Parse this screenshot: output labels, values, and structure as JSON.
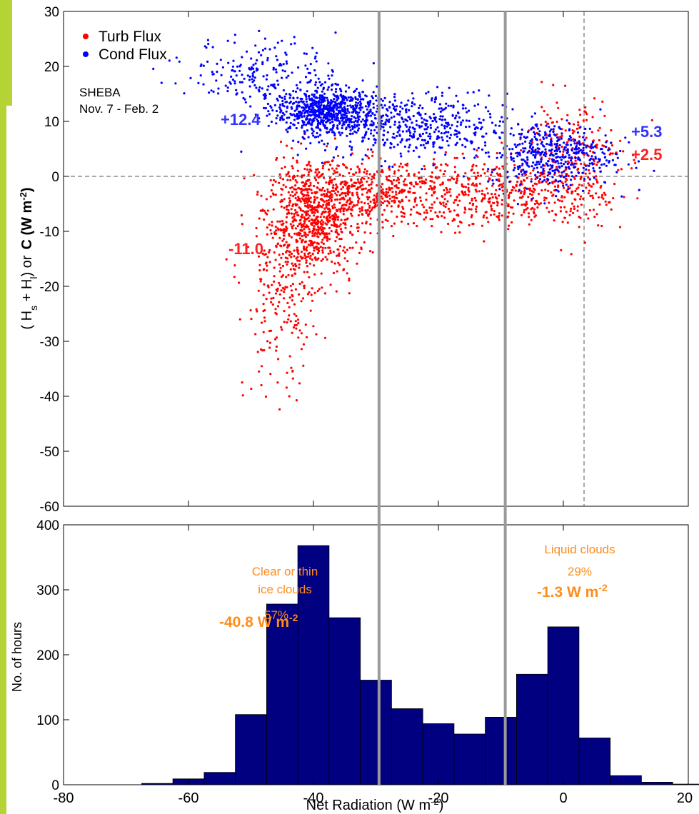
{
  "colors": {
    "frame": "#b5d334",
    "turb": "#ff0000",
    "cond": "#0000ff",
    "hist": "#000080",
    "annot_orange": "#ff8c1a",
    "divider": "#9a9a9a"
  },
  "chart_data": [
    {
      "type": "scatter",
      "ylabel_prefix": "( H",
      "ylabel_s": "s",
      "ylabel_plus": " + H",
      "ylabel_l": "l",
      "ylabel_mid": ") or",
      "ylabel_bold": "C (W m",
      "ylabel_exp": "-2",
      "ylabel_close": ")",
      "xlim": [
        -80,
        20
      ],
      "ylim": [
        -60,
        30
      ],
      "yticks": [
        "-60",
        "-50",
        "-40",
        "-30",
        "-20",
        "-10",
        "0",
        "10",
        "20",
        "30"
      ],
      "grid": false,
      "legend": [
        {
          "name": "Turb Flux",
          "color": "#ff0000"
        },
        {
          "name": "Cond Flux",
          "color": "#0000ff"
        }
      ],
      "annotation_site": "SHEBA",
      "annotation_dates": "Nov. 7 - Feb. 2",
      "labels": {
        "cond_clear": "+12.4",
        "turb_clear": "-11.0",
        "cond_liquid": "+5.3",
        "turb_liquid": "+2.5"
      },
      "series": [
        {
          "name": "Turb Flux",
          "clusters": [
            {
              "cx": -40,
              "cy": -8,
              "sx": 3.5,
              "sy": 5,
              "n": 700
            },
            {
              "cx": -30,
              "cy": -3,
              "sx": 7,
              "sy": 3,
              "n": 500
            },
            {
              "cx": -45,
              "cy": -22,
              "sx": 3,
              "sy": 9,
              "n": 230
            },
            {
              "cx": -10,
              "cy": -3,
              "sx": 8,
              "sy": 3,
              "n": 420
            },
            {
              "cx": 1,
              "cy": 3,
              "sx": 4,
              "sy": 6,
              "n": 260
            }
          ]
        },
        {
          "name": "Cond Flux",
          "clusters": [
            {
              "cx": -38,
              "cy": 12,
              "sx": 4,
              "sy": 2,
              "n": 700
            },
            {
              "cx": -48,
              "cy": 19,
              "sx": 6,
              "sy": 3,
              "n": 200
            },
            {
              "cx": -25,
              "cy": 9,
              "sx": 8,
              "sy": 3,
              "n": 500
            },
            {
              "cx": -2,
              "cy": 4,
              "sx": 5,
              "sy": 3,
              "n": 460
            }
          ]
        }
      ]
    },
    {
      "type": "bar",
      "xlabel": "Net Radiation (W m",
      "xlabel_exp": "-2",
      "xlabel_close": ")",
      "ylabel": "No. of hours",
      "xlim": [
        -80,
        20
      ],
      "ylim": [
        0,
        400
      ],
      "xticks": [
        "-80",
        "-60",
        "-40",
        "-20",
        "0",
        "20"
      ],
      "yticks": [
        "0",
        "100",
        "200",
        "300",
        "400"
      ],
      "bin_width": 5,
      "bins": [
        {
          "start": -67.5,
          "value": 2
        },
        {
          "start": -62.5,
          "value": 9
        },
        {
          "start": -57.5,
          "value": 19
        },
        {
          "start": -52.5,
          "value": 108
        },
        {
          "start": -47.5,
          "value": 278
        },
        {
          "start": -42.5,
          "value": 368
        },
        {
          "start": -37.5,
          "value": 257
        },
        {
          "start": -32.5,
          "value": 161
        },
        {
          "start": -27.5,
          "value": 117
        },
        {
          "start": -22.5,
          "value": 94
        },
        {
          "start": -17.5,
          "value": 78
        },
        {
          "start": -12.5,
          "value": 104
        },
        {
          "start": -7.5,
          "value": 170
        },
        {
          "start": -2.5,
          "value": 243
        },
        {
          "start": 2.5,
          "value": 72
        },
        {
          "start": 7.5,
          "value": 14
        },
        {
          "start": 12.5,
          "value": 4
        },
        {
          "start": 17.5,
          "value": 1
        }
      ],
      "annotations": {
        "clear_line1": "Clear or thin",
        "clear_line2": "ice clouds",
        "clear_pct": "57%",
        "clear_value": "-40.8 W m",
        "clear_exp": "-2",
        "liquid_line1": "Liquid clouds",
        "liquid_pct": "29%",
        "liquid_value": "-1.3 W m",
        "liquid_exp": "-2"
      }
    }
  ],
  "dividers": [
    -29.5,
    -9.3
  ]
}
